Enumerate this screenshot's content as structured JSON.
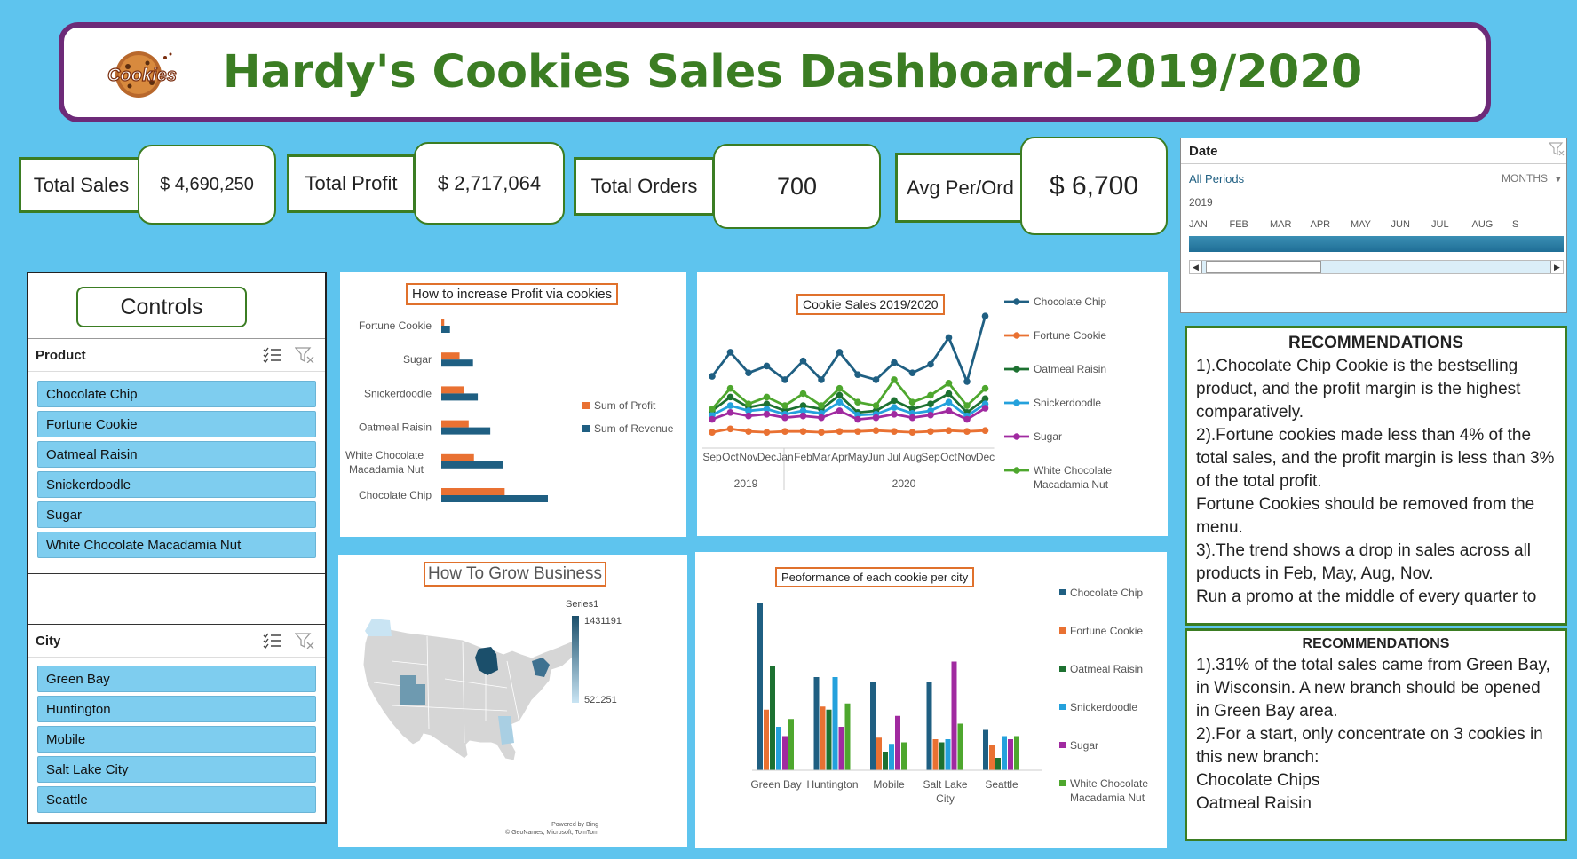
{
  "header": {
    "title": "Hardy's Cookies Sales Dashboard-2019/2020",
    "logo_text": "Cookies"
  },
  "kpis": [
    {
      "label": "Total Sales",
      "value": "$  4,690,250"
    },
    {
      "label": "Total Profit",
      "value": "$  2,717,064"
    },
    {
      "label": "Total Orders",
      "value": "700"
    },
    {
      "label": "Avg Per/Ord",
      "value": "$ 6,700"
    }
  ],
  "controls": {
    "title": "Controls",
    "product_slicer": {
      "header": "Product",
      "items": [
        "Chocolate Chip",
        "Fortune Cookie",
        "Oatmeal Raisin",
        "Snickerdoodle",
        "Sugar",
        "White Chocolate Macadamia Nut"
      ]
    },
    "city_slicer": {
      "header": "City",
      "items": [
        "Green Bay",
        "Huntington",
        "Mobile",
        "Salt Lake City",
        "Seattle"
      ]
    }
  },
  "timeline": {
    "header": "Date",
    "all_periods": "All Periods",
    "level": "MONTHS",
    "year": "2019",
    "months": [
      "JAN",
      "FEB",
      "MAR",
      "APR",
      "MAY",
      "JUN",
      "JUL",
      "AUG",
      "S"
    ]
  },
  "chart_data": [
    {
      "type": "bar",
      "title": "How to increase Profit via cookies",
      "orientation": "horizontal",
      "categories": [
        "Fortune Cookie",
        "Sugar",
        "Snickerdoodle",
        "Oatmeal Raisin",
        "White Chocolate Macadamia Nut",
        "Chocolate Chip"
      ],
      "series": [
        {
          "name": "Sum of Profit",
          "values": [
            30000,
            190000,
            240000,
            285000,
            340000,
            660000
          ]
        },
        {
          "name": "Sum of Revenue",
          "values": [
            90000,
            330000,
            380000,
            510000,
            640000,
            1110000
          ]
        }
      ]
    },
    {
      "type": "line",
      "title": "Cookie Sales 2019/2020",
      "x": [
        "Sep",
        "Oct",
        "Nov",
        "Dec",
        "Jan",
        "Feb",
        "Mar",
        "Apr",
        "May",
        "Jun",
        "Jul",
        "Aug",
        "Sep",
        "Oct",
        "Nov",
        "Dec"
      ],
      "x_groups": [
        {
          "label": "2019",
          "span": 4
        },
        {
          "label": "2020",
          "span": 12
        }
      ],
      "series": [
        {
          "name": "Chocolate Chip",
          "values": [
            70,
            98,
            74,
            82,
            66,
            88,
            66,
            98,
            72,
            66,
            86,
            74,
            84,
            115,
            64,
            140
          ]
        },
        {
          "name": "Fortune Cookie",
          "values": [
            5,
            9,
            6,
            5,
            6,
            6,
            5,
            6,
            6,
            7,
            6,
            5,
            6,
            7,
            6,
            7
          ]
        },
        {
          "name": "Oatmeal Raisin",
          "values": [
            30,
            46,
            34,
            38,
            30,
            36,
            32,
            48,
            28,
            30,
            42,
            32,
            38,
            50,
            28,
            44
          ]
        },
        {
          "name": "Snickerdoodle",
          "values": [
            25,
            36,
            30,
            32,
            26,
            30,
            27,
            40,
            25,
            26,
            34,
            27,
            30,
            40,
            24,
            38
          ]
        },
        {
          "name": "Sugar",
          "values": [
            20,
            28,
            24,
            26,
            22,
            24,
            22,
            30,
            20,
            22,
            26,
            22,
            25,
            30,
            20,
            33
          ]
        },
        {
          "name": "White Chocolate Macadamia Nut",
          "values": [
            32,
            56,
            38,
            46,
            36,
            50,
            36,
            56,
            40,
            36,
            66,
            40,
            48,
            62,
            36,
            56
          ]
        }
      ]
    },
    {
      "type": "map",
      "title": "How To Grow Business",
      "legend_title": "Series1",
      "scale_max": "1431191",
      "scale_min": "521251",
      "credit_line1": "Powered by Bing",
      "credit_line2": "© GeoNames, Microsoft, TomTom"
    },
    {
      "type": "bar",
      "title": "Peoformance of each cookie per city",
      "categories": [
        "Green Bay",
        "Huntington",
        "Mobile",
        "Salt Lake City",
        "Seattle"
      ],
      "series": [
        {
          "name": "Chocolate Chip",
          "values": [
            540,
            300,
            285,
            285,
            130
          ]
        },
        {
          "name": "Fortune Cookie",
          "values": [
            195,
            205,
            105,
            100,
            80
          ]
        },
        {
          "name": "Oatmeal Raisin",
          "values": [
            335,
            195,
            60,
            90,
            40
          ]
        },
        {
          "name": "Snickerdoodle",
          "values": [
            140,
            300,
            85,
            100,
            110
          ]
        },
        {
          "name": "Sugar",
          "values": [
            110,
            140,
            175,
            350,
            100
          ]
        },
        {
          "name": "White Chocolate Macadamia Nut",
          "values": [
            165,
            215,
            90,
            150,
            110
          ]
        }
      ]
    }
  ],
  "legend_labels": {
    "white_choc_line1": "White Chocolate",
    "white_choc_line2": "Macadamia Nut",
    "bar_cat_wcmn_line1": "White Chocolate",
    "bar_cat_wcmn_line2": "Macadamia Nut",
    "city_slc_line1": "Salt Lake",
    "city_slc_line2": "City"
  },
  "recommendations_1": {
    "title": "RECOMMENDATIONS",
    "lines": [
      "1).Chocolate Chip Cookie is the bestselling product, and the profit margin is the highest comparatively.",
      "2).Fortune cookies made less than 4% of the total sales, and the profit margin is less than 3% of the total profit.",
      "Fortune Cookies should be removed from the menu.",
      "3).The trend shows a drop in sales across all products in Feb, May, Aug, Nov.",
      "Run a promo at the middle of every quarter to"
    ]
  },
  "recommendations_2": {
    "title": "RECOMMENDATIONS",
    "lines": [
      "1).31% of the total sales came from Green Bay, in Wisconsin. A new branch should be opened in Green Bay area.",
      "2).For a start, only concentrate on 3 cookies in this new branch:",
      "Chocolate Chips",
      "Oatmeal Raisin"
    ]
  },
  "colors": {
    "chocolate_chip": "#1f5f82",
    "fortune_cookie": "#e97132",
    "oatmeal_raisin": "#1d7131",
    "snickerdoodle": "#24a1dc",
    "sugar": "#a02aa0",
    "white_choc": "#4ea72e",
    "title_green": "#3b7d23",
    "header_border": "#6d2a78",
    "background": "#5ec4ee"
  }
}
